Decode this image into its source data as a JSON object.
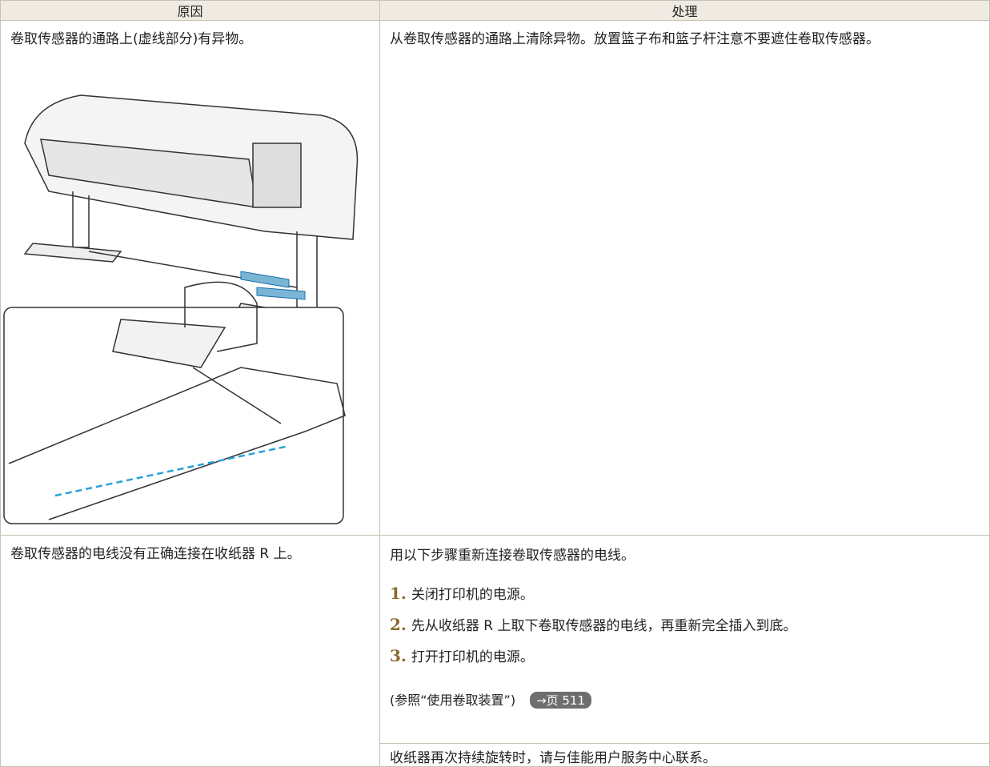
{
  "table": {
    "header": [
      "原因",
      "处理"
    ],
    "rows": [
      {
        "cause": "卷取传感器的通路上(虚线部分)有异物。",
        "action": "从卷取传感器的通路上清除异物。放置篮子布和篮子杆注意不要遮住卷取传感器。"
      },
      {
        "cause": "卷取传感器的电线没有正确连接在收纸器 R 上。",
        "action": "用以下步骤重新连接卷取传感器的电线。",
        "steps": [
          {
            "number": "1.",
            "text": "关闭打印机的电源。"
          },
          {
            "number": "2.",
            "text": "先从收纸器 R 上取下卷取传感器的电线，再重新完全插入到底。"
          },
          {
            "number": "3.",
            "text": "打开打印机的电源。"
          }
        ],
        "reference": "(参照“使用卷取装置”)",
        "link": "→页 511"
      },
      {
        "action": "收纸器再次持续旋转时，请与佳能用户服务中心联系。"
      }
    ]
  }
}
